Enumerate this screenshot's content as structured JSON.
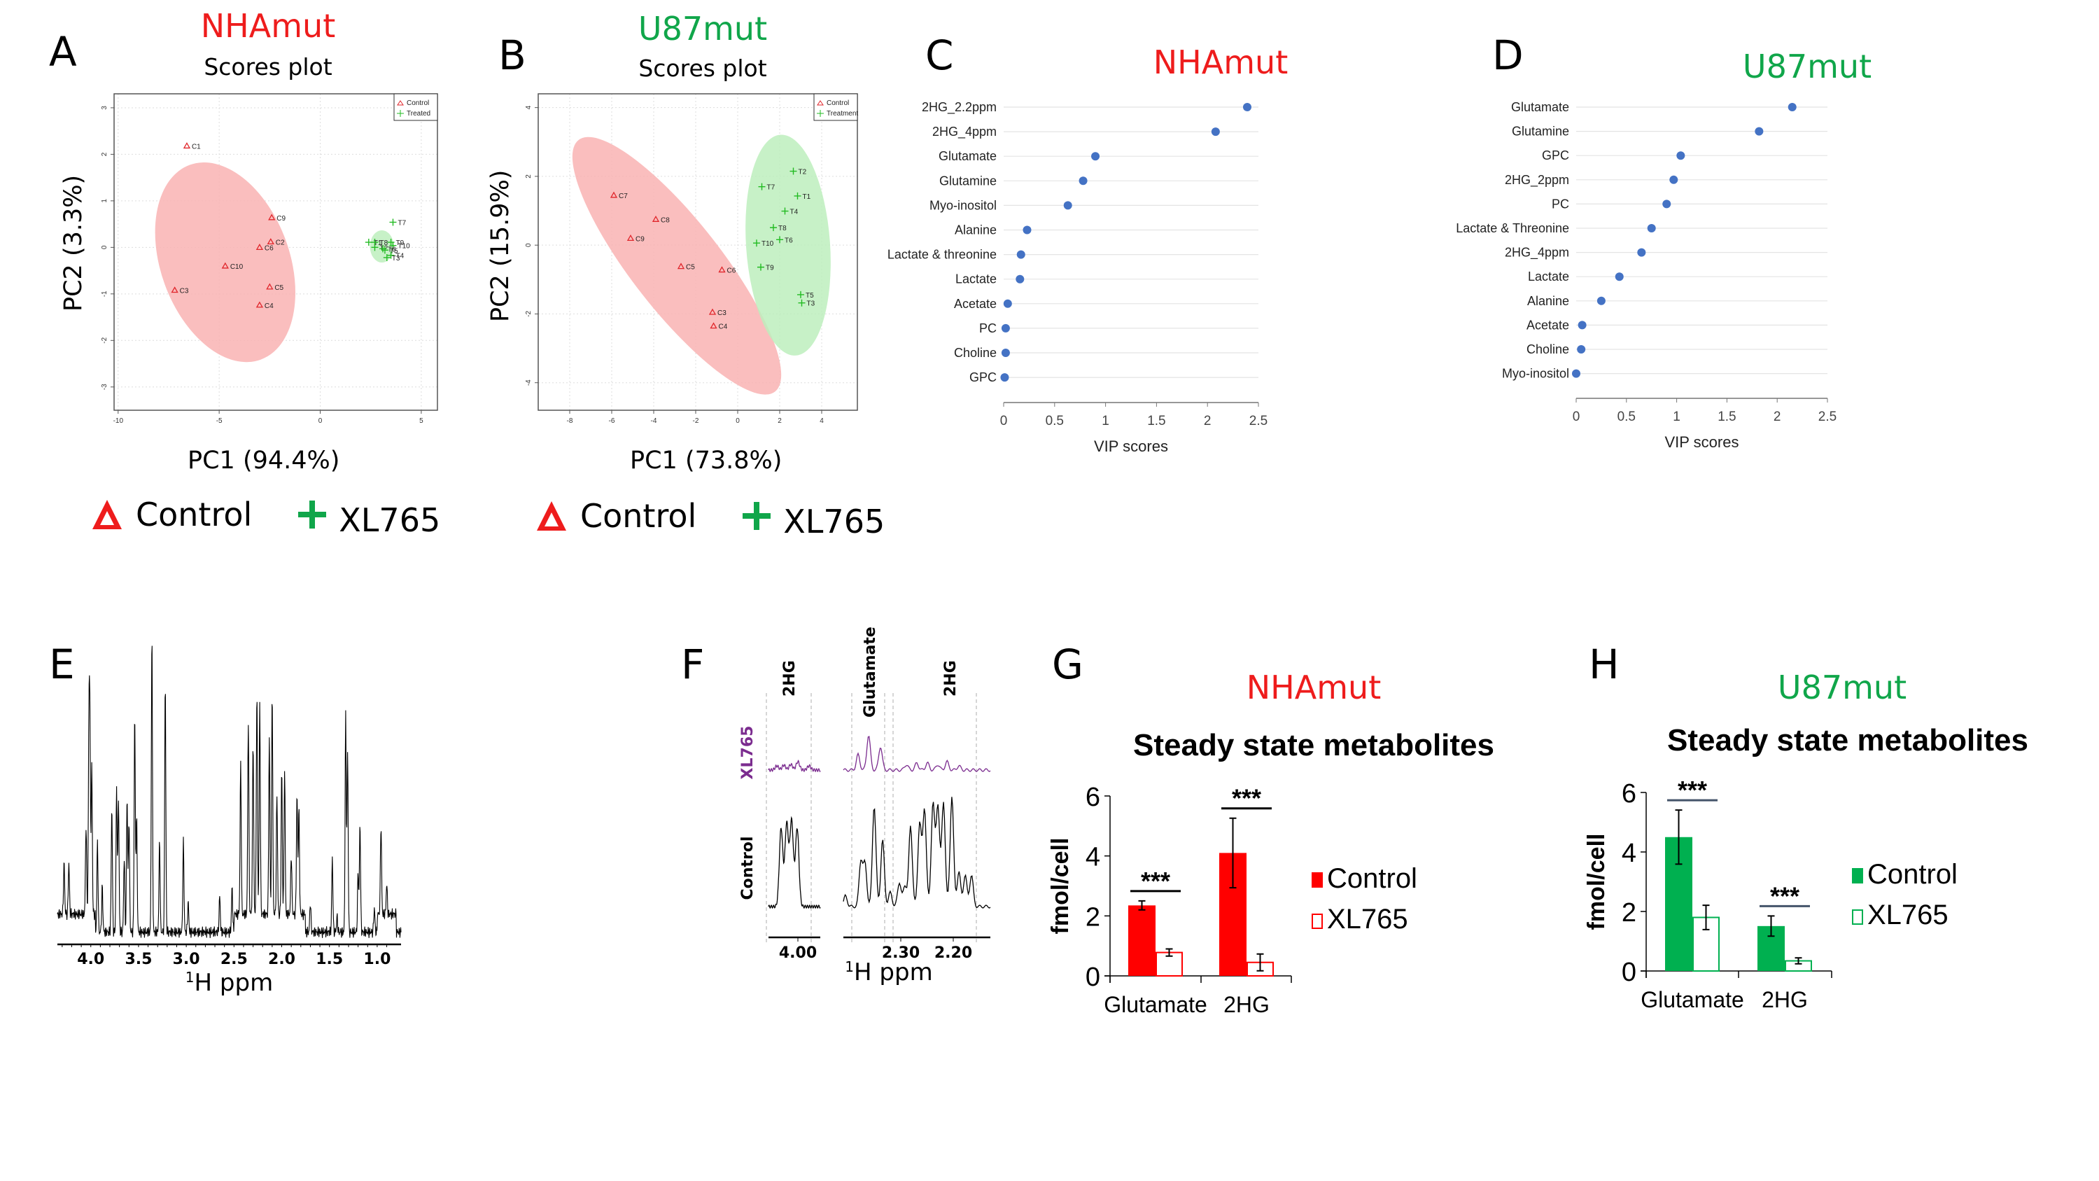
{
  "panels": {
    "A": {
      "letter": "A",
      "condition": "NHAmut",
      "subtitle": "Scores plot",
      "xlabel": "PC1 (94.4%)",
      "ylabel": "PC2 (3.3%)"
    },
    "B": {
      "letter": "B",
      "condition": "U87mut",
      "subtitle": "Scores plot",
      "xlabel": "PC1 (73.8%)",
      "ylabel": "PC2 (15.9%)"
    },
    "C": {
      "letter": "C",
      "condition": "NHAmut",
      "xlabel": "VIP scores"
    },
    "D": {
      "letter": "D",
      "condition": "U87mut",
      "xlabel": "VIP scores"
    },
    "E": {
      "letter": "E",
      "xlabel_sup": "1",
      "xlabel": "H ppm"
    },
    "F": {
      "letter": "F",
      "xlabel_sup": "1",
      "xlabel": "H ppm"
    },
    "G": {
      "letter": "G",
      "condition": "NHAmut"
    },
    "H": {
      "letter": "H",
      "condition": "U87mut"
    }
  },
  "big_legend": {
    "control": "Control",
    "treated": "XL765"
  },
  "colors": {
    "red": "#ee1c1c",
    "green": "#10a64a",
    "ellipse_red": "#f9b3b3",
    "ellipse_green": "#bdeebd",
    "dot_blue": "#4472c4",
    "purple": "#7b2c8f",
    "bar_red": "#ff0000",
    "bar_green": "#00b050"
  },
  "chart_data": [
    {
      "id": "A",
      "type": "scatter",
      "title": "NHAmut Scores plot",
      "xlabel": "PC1 (94.4%)",
      "ylabel": "PC2 (3.3%)",
      "xlim": [
        -10.2,
        5.8
      ],
      "ylim": [
        -3.5,
        3.3
      ],
      "xticks": [
        -10,
        -5,
        0,
        5
      ],
      "yticks": [
        -3,
        -2,
        -1,
        0,
        1,
        2,
        3
      ],
      "grid": true,
      "legend": {
        "position": "top-right",
        "entries": [
          "Control",
          "Treated"
        ]
      },
      "series": [
        {
          "name": "Control",
          "marker": "triangle",
          "points": [
            {
              "label": "C1",
              "x": -6.6,
              "y": 2.18
            },
            {
              "label": "C9",
              "x": -2.4,
              "y": 0.64
            },
            {
              "label": "C2",
              "x": -2.45,
              "y": 0.12
            },
            {
              "label": "C6",
              "x": -3.0,
              "y": 0.0
            },
            {
              "label": "C10",
              "x": -4.7,
              "y": -0.4
            },
            {
              "label": "C3",
              "x": -7.2,
              "y": -0.92
            },
            {
              "label": "C5",
              "x": -2.5,
              "y": -0.85
            },
            {
              "label": "C4",
              "x": -3.0,
              "y": -1.24
            }
          ],
          "ellipse": {
            "cx": -4.7,
            "cy": -0.32,
            "angle_deg": -18
          }
        },
        {
          "name": "Treated",
          "marker": "plus",
          "points": [
            {
              "label": "T7",
              "x": 3.6,
              "y": 0.54
            },
            {
              "label": "T1",
              "x": 2.4,
              "y": 0.11
            },
            {
              "label": "T8",
              "x": 2.7,
              "y": 0.11
            },
            {
              "label": "T9",
              "x": 3.5,
              "y": 0.11
            },
            {
              "label": "T10",
              "x": 3.6,
              "y": 0.04
            },
            {
              "label": "T2",
              "x": 2.7,
              "y": 0.0
            },
            {
              "label": "T6",
              "x": 3.1,
              "y": -0.03
            },
            {
              "label": "T5",
              "x": 3.2,
              "y": -0.06
            },
            {
              "label": "T4",
              "x": 3.5,
              "y": -0.17
            },
            {
              "label": "T3",
              "x": 3.3,
              "y": -0.22
            }
          ],
          "ellipse": {
            "cx": 3.05,
            "cy": 0.02
          }
        }
      ]
    },
    {
      "id": "B",
      "type": "scatter",
      "title": "U87mut Scores plot",
      "xlabel": "PC1 (73.8%)",
      "ylabel": "PC2 (15.9%)",
      "xlim": [
        -9.5,
        5.7
      ],
      "ylim": [
        -4.8,
        4.4
      ],
      "xticks": [
        -8,
        -6,
        -4,
        -2,
        0,
        2,
        4
      ],
      "yticks": [
        -4,
        -2,
        0,
        2,
        4
      ],
      "grid": true,
      "legend": {
        "position": "top-right",
        "entries": [
          "Control",
          "Treatment"
        ]
      },
      "series": [
        {
          "name": "Control",
          "marker": "triangle",
          "points": [
            {
              "label": "C7",
              "x": -5.9,
              "y": 1.45
            },
            {
              "label": "C8",
              "x": -3.9,
              "y": 0.75
            },
            {
              "label": "C9",
              "x": -5.1,
              "y": 0.2
            },
            {
              "label": "C5",
              "x": -2.7,
              "y": -0.62
            },
            {
              "label": "C6",
              "x": -0.75,
              "y": -0.72
            },
            {
              "label": "C3",
              "x": -1.2,
              "y": -1.95
            },
            {
              "label": "C4",
              "x": -1.15,
              "y": -2.35
            }
          ]
        },
        {
          "name": "Treatment",
          "marker": "plus",
          "points": [
            {
              "label": "T2",
              "x": 2.65,
              "y": 2.15
            },
            {
              "label": "T7",
              "x": 1.15,
              "y": 1.7
            },
            {
              "label": "T1",
              "x": 2.85,
              "y": 1.43
            },
            {
              "label": "T4",
              "x": 2.25,
              "y": 0.99
            },
            {
              "label": "T8",
              "x": 1.7,
              "y": 0.51
            },
            {
              "label": "T6",
              "x": 2.0,
              "y": 0.16
            },
            {
              "label": "T10",
              "x": 0.9,
              "y": 0.06
            },
            {
              "label": "T9",
              "x": 1.1,
              "y": -0.64
            },
            {
              "label": "T5",
              "x": 3.0,
              "y": -1.44
            },
            {
              "label": "T3",
              "x": 3.05,
              "y": -1.68
            }
          ]
        }
      ]
    },
    {
      "id": "C",
      "type": "scatter",
      "title": "NHAmut",
      "xlabel": "VIP scores",
      "xlim": [
        0,
        2.5
      ],
      "xticks": [
        "0",
        "0.5",
        "1",
        "1.5",
        "2",
        "2.5"
      ],
      "categories": [
        "2HG_2.2ppm",
        "2HG_4ppm",
        "Glutamate",
        "Glutamine",
        "Myo-inositol",
        "Alanine",
        "Lactate & threonine",
        "Lactate",
        "Acetate",
        "PC",
        "Choline",
        "GPC"
      ],
      "values": [
        2.39,
        2.08,
        0.9,
        0.78,
        0.63,
        0.23,
        0.17,
        0.16,
        0.04,
        0.02,
        0.02,
        0.01
      ]
    },
    {
      "id": "D",
      "type": "scatter",
      "title": "U87mut",
      "xlabel": "VIP scores",
      "xlim": [
        0,
        2.5
      ],
      "xticks": [
        "0",
        "0.5",
        "1",
        "1.5",
        "2",
        "2.5"
      ],
      "categories": [
        "Glutamate",
        "Glutamine",
        "GPC",
        "2HG_2ppm",
        "PC",
        "Lactate & Threonine",
        "2HG_4ppm",
        "Lactate",
        "Alanine",
        "Acetate",
        "Choline",
        "Myo-inositol"
      ],
      "values": [
        2.15,
        1.82,
        1.04,
        0.97,
        0.9,
        0.75,
        0.65,
        0.43,
        0.25,
        0.06,
        0.05,
        0.0
      ]
    },
    {
      "id": "E",
      "type": "line",
      "title": "",
      "xlabel": "1H ppm",
      "xlim": [
        4.35,
        0.75
      ],
      "xticks": [
        "4.0",
        "3.5",
        "3.0",
        "2.5",
        "2.0",
        "1.5",
        "1.0"
      ],
      "peaks": [
        {
          "ppm": 4.28,
          "h": 0.17
        },
        {
          "ppm": 4.23,
          "h": 0.17
        },
        {
          "ppm": 4.05,
          "h": 0.3
        },
        {
          "ppm": 4.02,
          "h": 0.55
        },
        {
          "ppm": 4.01,
          "h": 0.6
        },
        {
          "ppm": 3.99,
          "h": 0.5
        },
        {
          "ppm": 3.93,
          "h": 0.3
        },
        {
          "ppm": 3.88,
          "h": 0.15
        },
        {
          "ppm": 3.78,
          "h": 0.42
        },
        {
          "ppm": 3.73,
          "h": 0.48
        },
        {
          "ppm": 3.71,
          "h": 0.45
        },
        {
          "ppm": 3.65,
          "h": 0.25
        },
        {
          "ppm": 3.62,
          "h": 0.45
        },
        {
          "ppm": 3.6,
          "h": 0.38
        },
        {
          "ppm": 3.54,
          "h": 0.73
        },
        {
          "ppm": 3.52,
          "h": 0.38
        },
        {
          "ppm": 3.36,
          "h": 1.0
        },
        {
          "ppm": 3.28,
          "h": 0.3
        },
        {
          "ppm": 3.22,
          "h": 0.84
        },
        {
          "ppm": 3.03,
          "h": 0.3
        },
        {
          "ppm": 2.98,
          "h": 0.1
        },
        {
          "ppm": 2.65,
          "h": 0.12
        },
        {
          "ppm": 2.52,
          "h": 0.15
        },
        {
          "ppm": 2.43,
          "h": 0.5
        },
        {
          "ppm": 2.35,
          "h": 0.65
        },
        {
          "ppm": 2.3,
          "h": 0.58
        },
        {
          "ppm": 2.26,
          "h": 0.75
        },
        {
          "ppm": 2.23,
          "h": 0.7
        },
        {
          "ppm": 2.13,
          "h": 0.58
        },
        {
          "ppm": 2.1,
          "h": 0.75
        },
        {
          "ppm": 2.05,
          "h": 0.4
        },
        {
          "ppm": 2.0,
          "h": 0.48
        },
        {
          "ppm": 1.97,
          "h": 0.48
        },
        {
          "ppm": 1.9,
          "h": 0.2
        },
        {
          "ppm": 1.84,
          "h": 0.4
        },
        {
          "ppm": 1.82,
          "h": 0.35
        },
        {
          "ppm": 1.7,
          "h": 0.1
        },
        {
          "ppm": 1.47,
          "h": 0.25
        },
        {
          "ppm": 1.42,
          "h": 0.05
        },
        {
          "ppm": 1.33,
          "h": 0.72
        },
        {
          "ppm": 1.31,
          "h": 0.6
        },
        {
          "ppm": 1.2,
          "h": 0.2
        },
        {
          "ppm": 1.18,
          "h": 0.36
        },
        {
          "ppm": 1.03,
          "h": 0.08
        },
        {
          "ppm": 0.96,
          "h": 0.3
        },
        {
          "ppm": 0.9,
          "h": 0.1
        }
      ]
    },
    {
      "id": "F",
      "type": "line",
      "xlabel": "1H ppm",
      "xticks": [
        "4.00",
        "2.30",
        "2.20"
      ],
      "region_labels": [
        "2HG",
        "Glutamate",
        "2HG"
      ],
      "series": [
        "XL765",
        "Control"
      ]
    },
    {
      "id": "G",
      "type": "bar",
      "title": "Steady state metabolites",
      "condition": "NHAmut",
      "ylabel": "fmol/cell",
      "ylim": [
        0,
        6
      ],
      "yticks": [
        0,
        2,
        4,
        6
      ],
      "categories": [
        "Glutamate",
        "2HG"
      ],
      "series": [
        {
          "name": "Control",
          "values": [
            2.35,
            4.1
          ],
          "errors": [
            0.15,
            1.16
          ]
        },
        {
          "name": "XL765",
          "values": [
            0.78,
            0.45
          ],
          "errors": [
            0.12,
            0.28
          ]
        }
      ],
      "significance": [
        "***",
        "***"
      ],
      "legend": "right"
    },
    {
      "id": "H",
      "type": "bar",
      "title": "Steady state metabolites",
      "condition": "U87mut",
      "ylabel": "fmol/cell",
      "ylim": [
        0,
        6
      ],
      "yticks": [
        0,
        2,
        4,
        6
      ],
      "categories": [
        "Glutamate",
        "2HG"
      ],
      "series": [
        {
          "name": "Control",
          "values": [
            4.5,
            1.51
          ],
          "errors": [
            0.91,
            0.34
          ]
        },
        {
          "name": "XL765",
          "values": [
            1.8,
            0.34
          ],
          "errors": [
            0.41,
            0.1
          ]
        }
      ],
      "significance": [
        "***",
        "***"
      ],
      "legend": "right"
    }
  ]
}
